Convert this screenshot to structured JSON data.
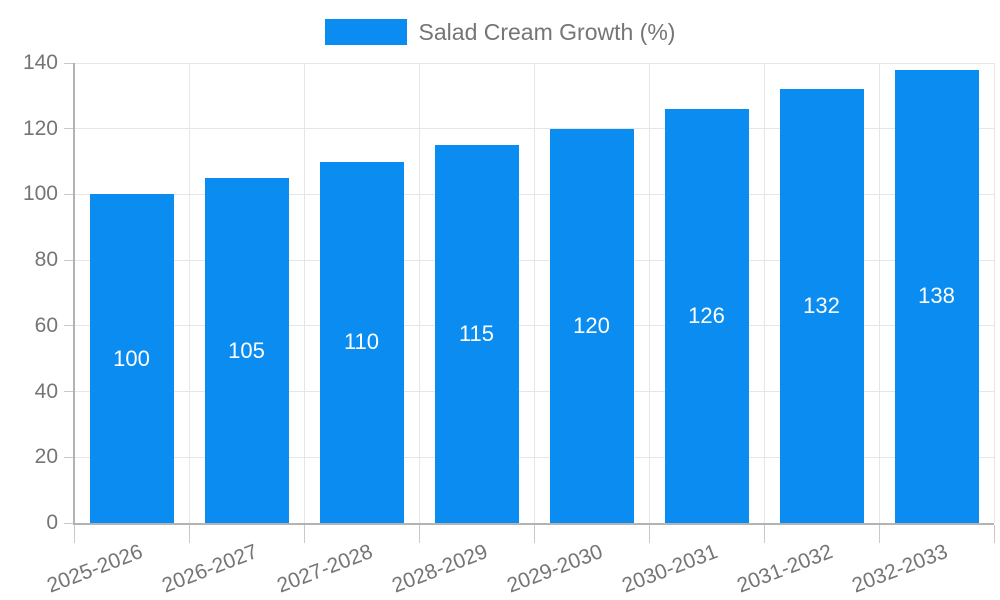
{
  "legend": {
    "label": "Salad Cream Growth (%)"
  },
  "chart_data": {
    "type": "bar",
    "title": "",
    "categories": [
      "2025-2026",
      "2026-2027",
      "2027-2028",
      "2028-2029",
      "2029-2030",
      "2030-2031",
      "2031-2032",
      "2032-2033"
    ],
    "series": [
      {
        "name": "Salad Cream Growth (%)",
        "values": [
          100,
          105,
          110,
          115,
          120,
          126,
          132,
          138
        ]
      }
    ],
    "value_labels": [
      100,
      105,
      110,
      115,
      120,
      126,
      132,
      138
    ],
    "xlabel": "",
    "ylabel": "",
    "ylim": [
      0,
      140
    ],
    "yticks": [
      0,
      20,
      40,
      60,
      80,
      100,
      120,
      140
    ],
    "grid": true,
    "legend_position": "top-center",
    "colors": {
      "bar": "#0a8cf0",
      "value_label": "#ffffff",
      "axis_text": "#757575",
      "gridline": "#e6e6e6",
      "axis_line": "#b3b3b3",
      "tick": "#c9c9c9",
      "background": "#ffffff"
    }
  }
}
